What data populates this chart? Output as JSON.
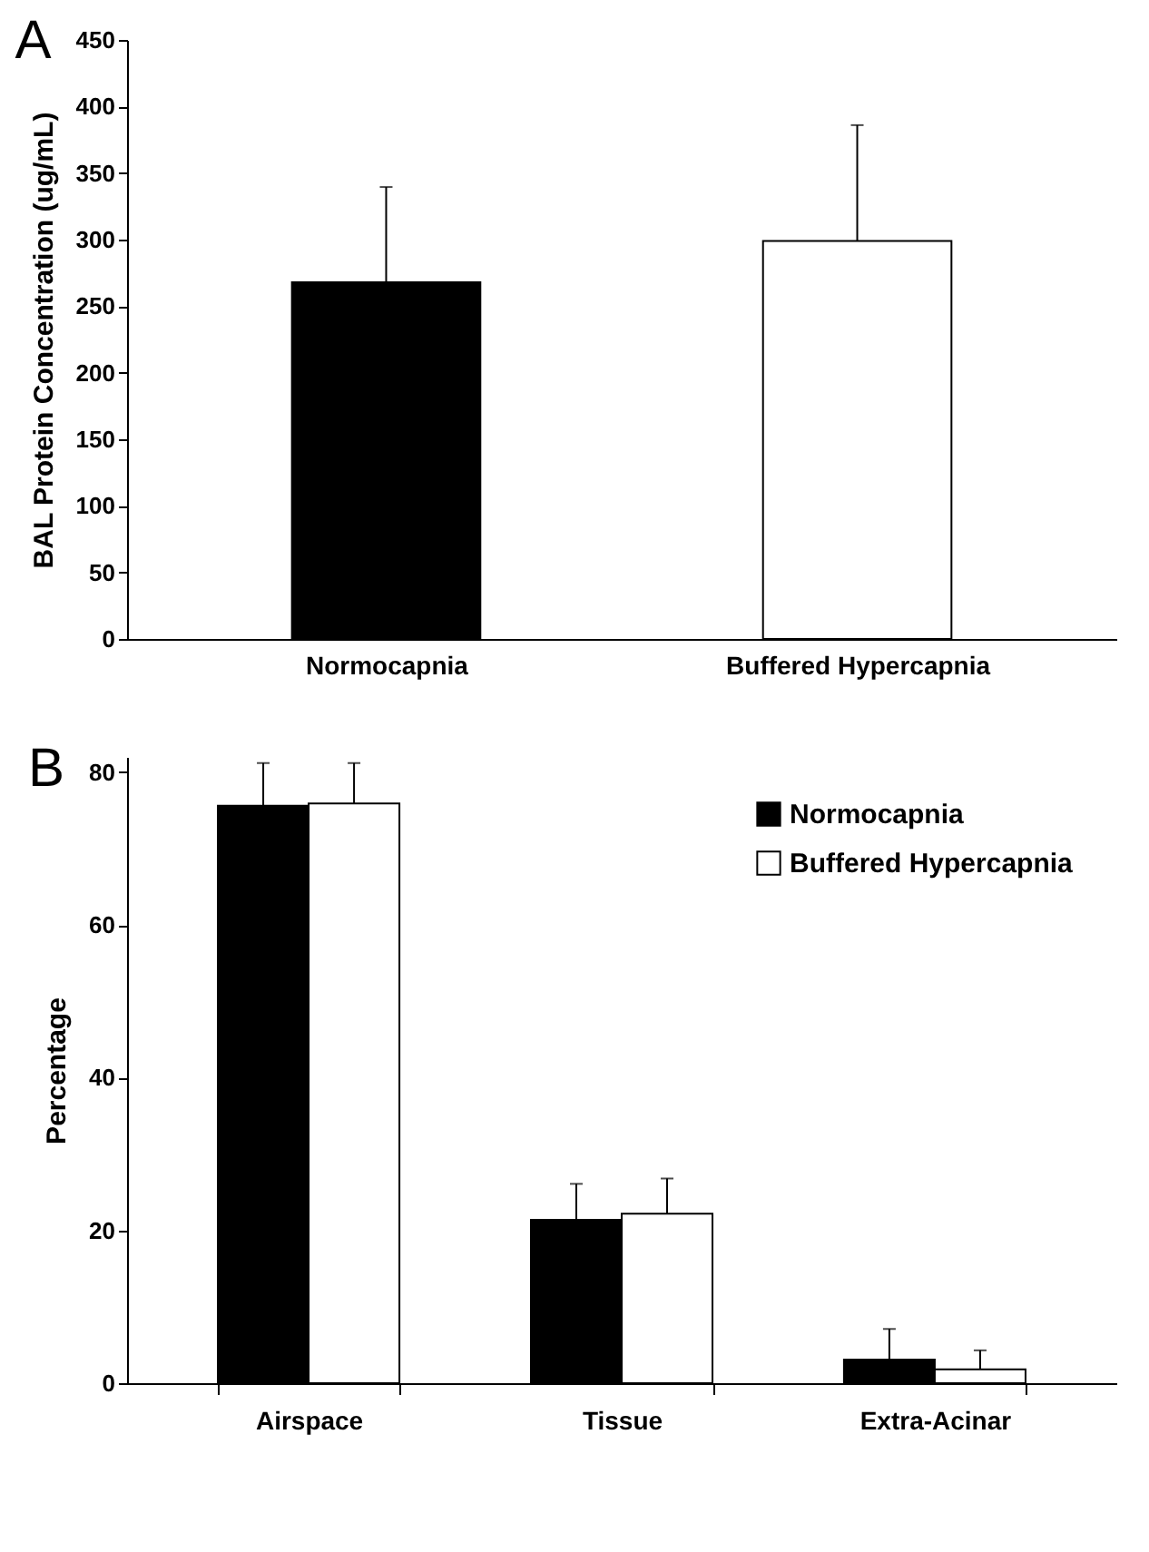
{
  "chart_data": [
    {
      "type": "bar",
      "title": "A",
      "ylabel": "BAL Protein Concentration (ug/mL)",
      "categories": [
        "Normocapnia",
        "Buffered Hypercapnia"
      ],
      "values": [
        268,
        299
      ],
      "colors": [
        "#000000",
        "#ffffff"
      ],
      "errors": [
        [
          268,
          339.5
        ],
        [
          299,
          386
        ]
      ],
      "ylim": [
        0,
        450
      ],
      "yticks": [
        0,
        50,
        100,
        150,
        200,
        250,
        300,
        350,
        400,
        450
      ]
    },
    {
      "type": "bar",
      "title": "B",
      "ylabel": "Percentage",
      "categories": [
        "Airspace",
        "Tissue",
        "Extra-Acinar"
      ],
      "legend": "top right",
      "ylim": [
        0,
        82
      ],
      "yticks": [
        0,
        20,
        40,
        60,
        80
      ],
      "series": [
        {
          "name": "Normocapnia",
          "color": "#000000",
          "values": [
            75.6,
            21.4,
            3.1
          ],
          "errors": [
            [
              75.6,
              81.2
            ],
            [
              21.4,
              26.1
            ],
            [
              3.1,
              7.1
            ]
          ]
        },
        {
          "name": "Buffered Hypercapnia",
          "color": "#ffffff",
          "values": [
            75.9,
            22.2,
            1.8
          ],
          "errors": [
            [
              75.9,
              81.2
            ],
            [
              22.2,
              26.8
            ],
            [
              1.8,
              4.3
            ]
          ]
        }
      ]
    }
  ]
}
